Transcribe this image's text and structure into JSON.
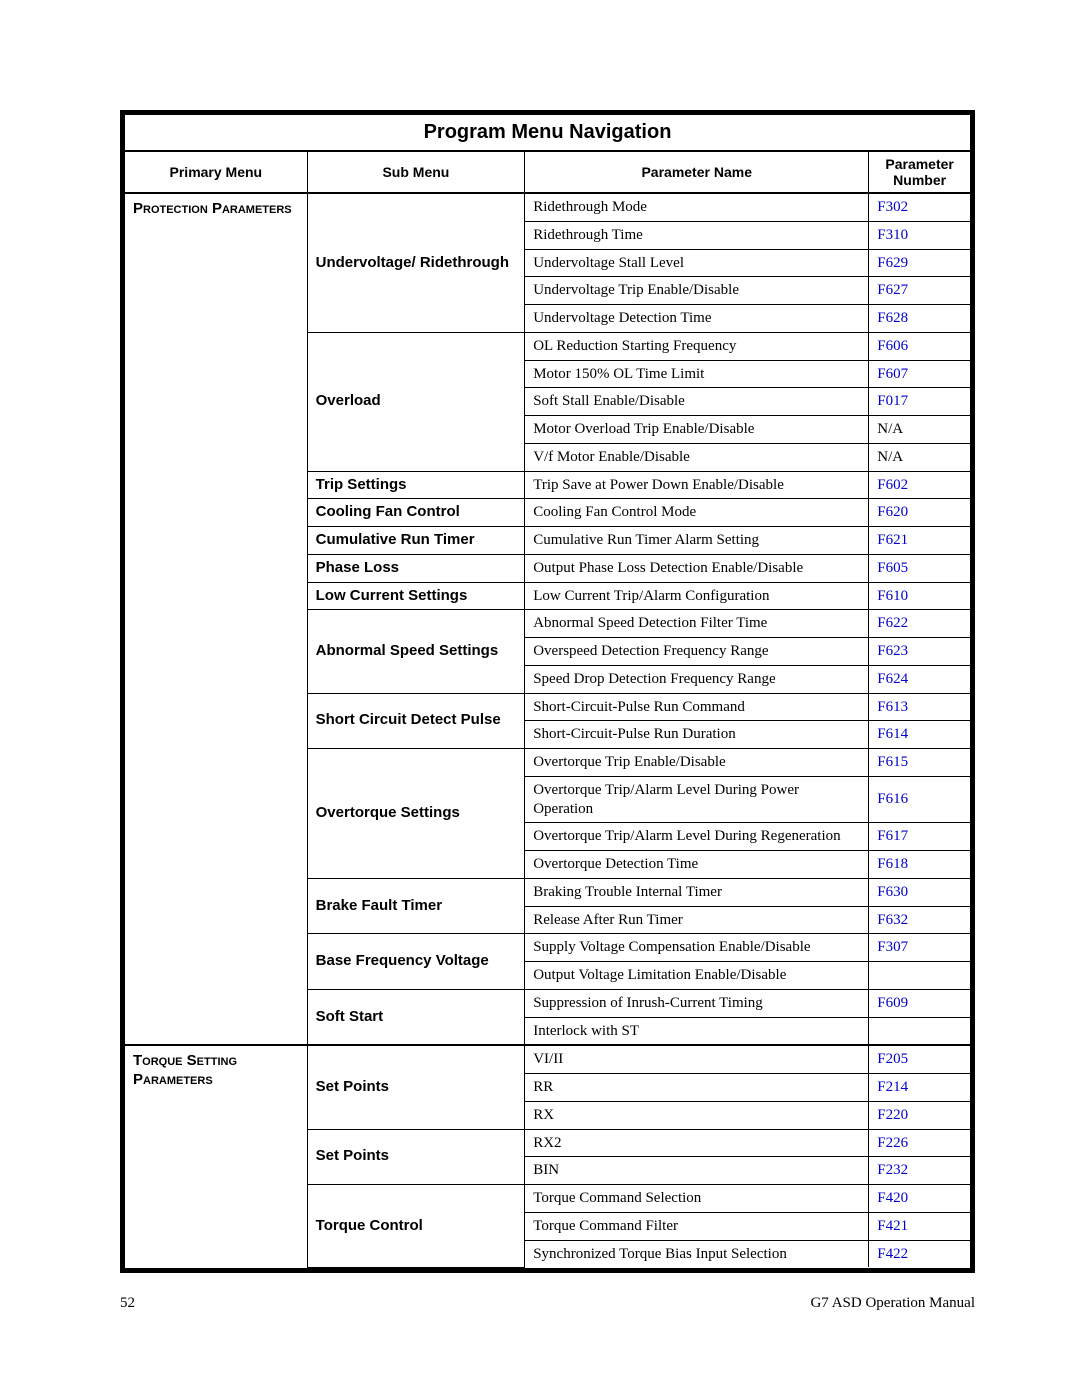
{
  "title": "Program Menu Navigation",
  "headers": {
    "c1": "Primary Menu",
    "c2": "Sub Menu",
    "c3": "Parameter Name",
    "c4": "Parameter Number"
  },
  "colors": {
    "link": "#0000cc",
    "border": "#000000",
    "bg": "#ffffff"
  },
  "footer": {
    "page": "52",
    "doc": "G7 ASD Operation Manual"
  },
  "sections": [
    {
      "primary": "Protection Parameters",
      "groups": [
        {
          "sub": "Undervoltage/ Ridethrough",
          "subAlign": "mid",
          "rows": [
            {
              "name": "Ridethrough Mode",
              "num": "F302",
              "link": true
            },
            {
              "name": "Ridethrough Time",
              "num": "F310",
              "link": true
            },
            {
              "name": "Undervoltage Stall Level",
              "num": "F629",
              "link": true
            },
            {
              "name": "Undervoltage Trip Enable/Disable",
              "num": "F627",
              "link": true
            },
            {
              "name": "Undervoltage Detection Time",
              "num": "F628",
              "link": true
            }
          ]
        },
        {
          "sub": "Overload",
          "rows": [
            {
              "name": "OL Reduction Starting Frequency",
              "num": "F606",
              "link": true
            },
            {
              "name": "Motor 150% OL Time Limit",
              "num": "F607",
              "link": true
            },
            {
              "name": "Soft Stall Enable/Disable",
              "num": "F017",
              "link": true
            },
            {
              "name": "Motor Overload Trip Enable/Disable",
              "num": "N/A",
              "link": false
            },
            {
              "name": "V/f Motor Enable/Disable",
              "num": "N/A",
              "link": false
            }
          ]
        },
        {
          "sub": "Trip Settings",
          "rows": [
            {
              "name": "Trip Save at Power Down Enable/Disable",
              "num": "F602",
              "link": true
            }
          ]
        },
        {
          "sub": "Cooling Fan Control",
          "rows": [
            {
              "name": "Cooling Fan Control Mode",
              "num": "F620",
              "link": true
            }
          ]
        },
        {
          "sub": "Cumulative Run Timer",
          "rows": [
            {
              "name": "Cumulative Run Timer Alarm Setting",
              "num": "F621",
              "link": true
            }
          ]
        },
        {
          "sub": "Phase Loss",
          "rows": [
            {
              "name": "Output Phase Loss Detection Enable/Disable",
              "num": "F605",
              "link": true
            }
          ]
        },
        {
          "sub": "Low Current Settings",
          "rows": [
            {
              "name": "Low Current Trip/Alarm Configuration",
              "num": "F610",
              "link": true
            }
          ]
        },
        {
          "sub": "Abnormal Speed Settings",
          "rows": [
            {
              "name": "Abnormal Speed Detection Filter Time",
              "num": "F622",
              "link": true
            },
            {
              "name": "Overspeed Detection Frequency Range",
              "num": "F623",
              "link": true
            },
            {
              "name": "Speed Drop Detection Frequency Range",
              "num": "F624",
              "link": true
            }
          ]
        },
        {
          "sub": "Short Circuit Detect Pulse",
          "rows": [
            {
              "name": "Short-Circuit-Pulse Run Command",
              "num": "F613",
              "link": true
            },
            {
              "name": "Short-Circuit-Pulse Run Duration",
              "num": "F614",
              "link": true
            }
          ]
        },
        {
          "sub": "Overtorque Settings",
          "rows": [
            {
              "name": "Overtorque Trip Enable/Disable",
              "num": "F615",
              "link": true
            },
            {
              "name": "Overtorque Trip/Alarm Level During Power Operation",
              "num": "F616",
              "link": true
            },
            {
              "name": "Overtorque Trip/Alarm Level During Regeneration",
              "num": "F617",
              "link": true
            },
            {
              "name": "Overtorque Detection Time",
              "num": "F618",
              "link": true
            }
          ]
        },
        {
          "sub": "Brake Fault Timer",
          "rows": [
            {
              "name": "Braking Trouble Internal Timer",
              "num": "F630",
              "link": true
            },
            {
              "name": "Release After Run Timer",
              "num": "F632",
              "link": true
            }
          ]
        },
        {
          "sub": "Base Frequency Voltage",
          "rows": [
            {
              "name": "Supply Voltage Compensation Enable/Disable",
              "num": "F307",
              "link": true
            },
            {
              "name": "Output Voltage Limitation Enable/Disable",
              "num": "",
              "link": false
            }
          ]
        },
        {
          "sub": "Soft Start",
          "rows": [
            {
              "name": "Suppression of Inrush-Current Timing",
              "num": "F609",
              "link": true
            },
            {
              "name": "Interlock with ST",
              "num": "",
              "link": false
            }
          ]
        }
      ]
    },
    {
      "primary": "Torque Setting Parameters",
      "groups": [
        {
          "sub": "Set Points",
          "rows": [
            {
              "name": "VI/II",
              "num": "F205",
              "link": true
            },
            {
              "name": "RR",
              "num": "F214",
              "link": true
            },
            {
              "name": "RX",
              "num": "F220",
              "link": true
            }
          ]
        },
        {
          "sub": "Set Points",
          "rows": [
            {
              "name": "RX2",
              "num": "F226",
              "link": true
            },
            {
              "name": "BIN",
              "num": "F232",
              "link": true
            }
          ]
        },
        {
          "sub": "Torque Control",
          "rows": [
            {
              "name": "Torque Command Selection",
              "num": "F420",
              "link": true
            },
            {
              "name": "Torque Command Filter",
              "num": "F421",
              "link": true
            },
            {
              "name": "Synchronized Torque Bias Input Selection",
              "num": "F422",
              "link": true
            }
          ]
        }
      ]
    }
  ]
}
